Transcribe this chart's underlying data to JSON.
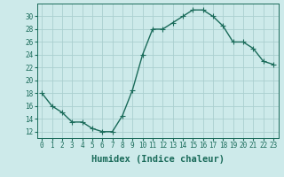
{
  "x": [
    0,
    1,
    2,
    3,
    4,
    5,
    6,
    7,
    8,
    9,
    10,
    11,
    12,
    13,
    14,
    15,
    16,
    17,
    18,
    19,
    20,
    21,
    22,
    23
  ],
  "y": [
    18,
    16,
    15,
    13.5,
    13.5,
    12.5,
    12,
    12,
    14.5,
    18.5,
    24,
    28,
    28,
    29,
    30,
    31,
    31,
    30,
    28.5,
    26,
    26,
    25,
    23,
    22.5
  ],
  "line_color": "#1a6b5a",
  "marker_color": "#1a6b5a",
  "bg_color": "#cdeaea",
  "grid_color": "#aacfcf",
  "xlabel": "Humidex (Indice chaleur)",
  "ylabel": "",
  "ylim": [
    11,
    32
  ],
  "xlim": [
    -0.5,
    23.5
  ],
  "yticks": [
    12,
    14,
    16,
    18,
    20,
    22,
    24,
    26,
    28,
    30
  ],
  "xticks": [
    0,
    1,
    2,
    3,
    4,
    5,
    6,
    7,
    8,
    9,
    10,
    11,
    12,
    13,
    14,
    15,
    16,
    17,
    18,
    19,
    20,
    21,
    22,
    23
  ],
  "tick_label_fontsize": 5.5,
  "xlabel_fontsize": 7.5,
  "line_width": 1.0,
  "marker_size": 2.0
}
